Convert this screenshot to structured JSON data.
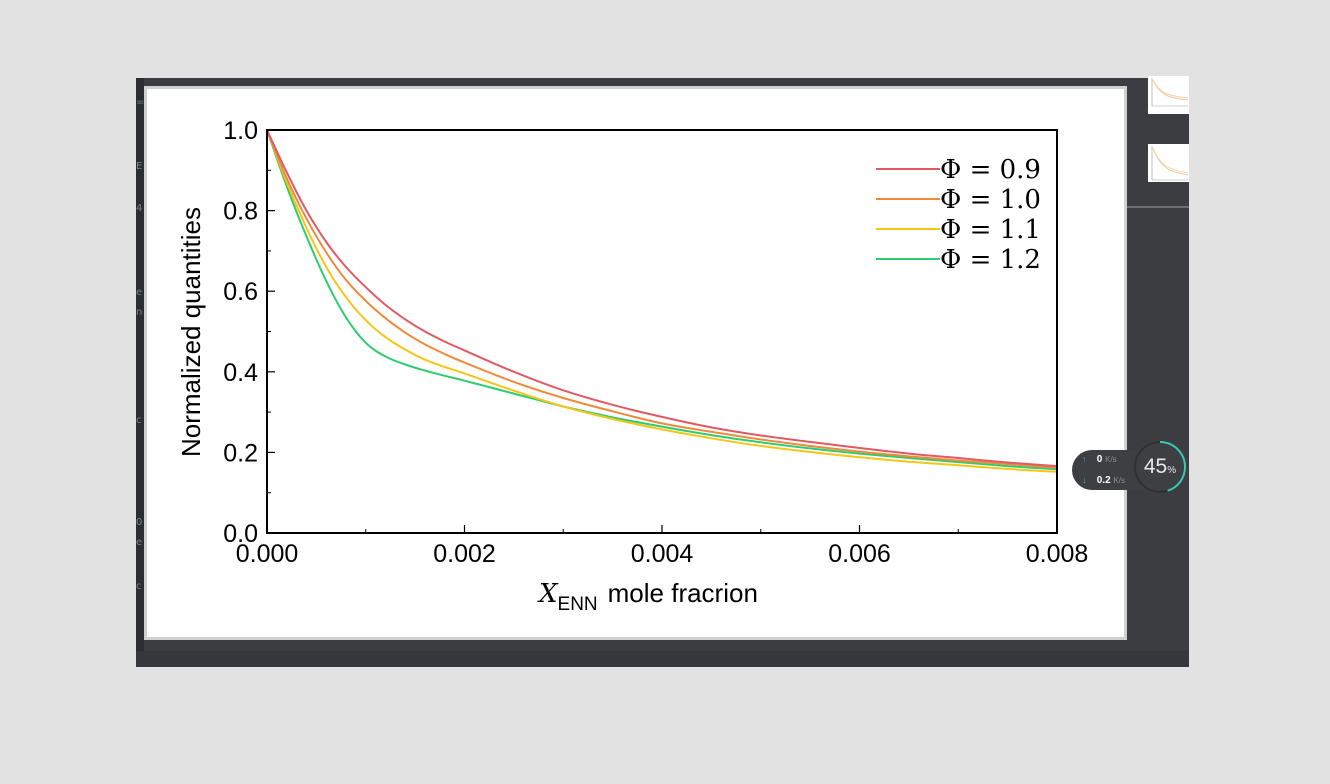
{
  "chart_data": {
    "type": "line",
    "xlabel_symbol": "X",
    "xlabel_subscript": "ENN",
    "xlabel_rest": "mole fracrion",
    "ylabel": "Normalized quantities",
    "xlim": [
      0,
      0.008
    ],
    "ylim": [
      0,
      1.0
    ],
    "x_ticks": [
      "0.000",
      "0.002",
      "0.004",
      "0.006",
      "0.008"
    ],
    "y_ticks": [
      "0.0",
      "0.2",
      "0.4",
      "0.6",
      "0.8",
      "1.0"
    ],
    "legend_position": "top-right",
    "x": [
      0,
      0.0002,
      0.0004,
      0.0006,
      0.0008,
      0.001,
      0.0012,
      0.0014,
      0.0016,
      0.0018,
      0.002,
      0.0025,
      0.003,
      0.0035,
      0.004,
      0.0045,
      0.005,
      0.0055,
      0.006,
      0.0065,
      0.007,
      0.0075,
      0.008
    ],
    "series": [
      {
        "name": "Φ = 0.9",
        "color": "#e05a63",
        "values": [
          1.0,
          0.895,
          0.8,
          0.722,
          0.66,
          0.61,
          0.566,
          0.53,
          0.5,
          0.475,
          0.453,
          0.4,
          0.354,
          0.318,
          0.288,
          0.262,
          0.242,
          0.226,
          0.211,
          0.197,
          0.186,
          0.175,
          0.166
        ]
      },
      {
        "name": "Φ = 1.0",
        "color": "#ee8a3c",
        "values": [
          1.0,
          0.88,
          0.78,
          0.696,
          0.628,
          0.576,
          0.533,
          0.497,
          0.468,
          0.444,
          0.423,
          0.375,
          0.335,
          0.302,
          0.272,
          0.251,
          0.232,
          0.216,
          0.202,
          0.19,
          0.18,
          0.171,
          0.162
        ]
      },
      {
        "name": "Φ = 1.1",
        "color": "#f5c518",
        "values": [
          1.0,
          0.87,
          0.757,
          0.66,
          0.585,
          0.528,
          0.486,
          0.455,
          0.43,
          0.412,
          0.396,
          0.353,
          0.314,
          0.283,
          0.257,
          0.235,
          0.216,
          0.201,
          0.188,
          0.177,
          0.168,
          0.159,
          0.152
        ]
      },
      {
        "name": "Φ = 1.2",
        "color": "#2ecc71",
        "values": [
          1.0,
          0.86,
          0.736,
          0.625,
          0.535,
          0.472,
          0.438,
          0.418,
          0.403,
          0.39,
          0.378,
          0.346,
          0.314,
          0.287,
          0.264,
          0.243,
          0.225,
          0.21,
          0.197,
          0.186,
          0.176,
          0.166,
          0.158
        ]
      }
    ]
  },
  "left_strip": {
    "marks": [
      "=",
      "E",
      "4",
      "e",
      "n",
      "c",
      "0",
      "e",
      "c"
    ]
  },
  "network": {
    "upload_value": "0",
    "upload_unit": "K/s",
    "download_value": "0.2",
    "download_unit": "K/s",
    "upload_arrow_color": "#3aa0ff",
    "download_arrow_color": "#2ecc71"
  },
  "cpu": {
    "value": 45,
    "label": "45",
    "unit": "%",
    "ring_color": "#3bc8b4"
  }
}
